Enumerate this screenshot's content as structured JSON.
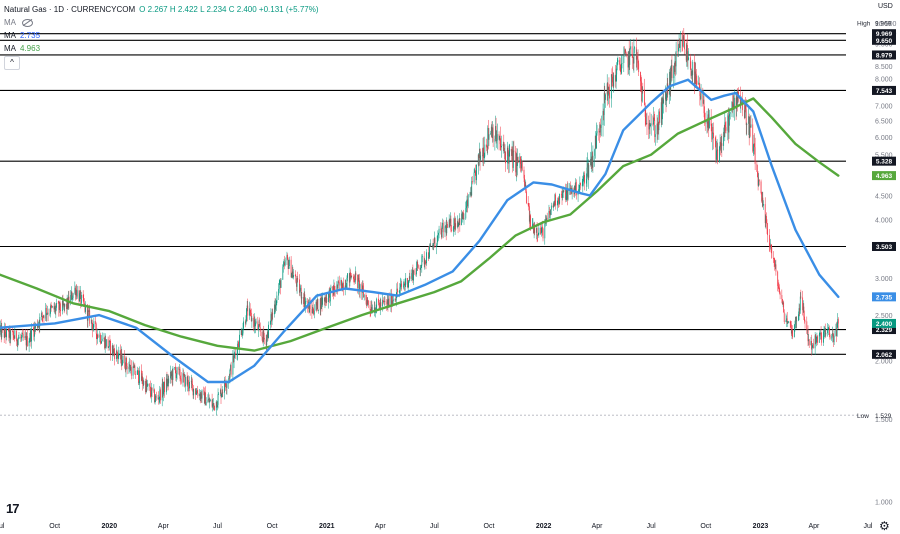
{
  "legend": {
    "symbol": "Natural Gas · 1D · CURRENCYCOM",
    "ohlc": "O 2.267  H 2.422  L 2.234  C 2.400  +0.131 (+5.77%)",
    "ma1_label": "MA",
    "ma2_label": "MA",
    "ma3_label": "MA",
    "ma2_value": "2.735",
    "ma3_value": "4.963",
    "collapse_glyph": "^"
  },
  "colors": {
    "up": "#089981",
    "down": "#f23645",
    "ma_fast": "#3a8ee6",
    "ma_slow": "#56a83c",
    "hline": "#000000"
  },
  "chart_data": {
    "type": "candlestick",
    "currency": "USD",
    "y_scale": "log",
    "ylim": [
      0.95,
      11.2
    ],
    "y_ticks": [
      1.0,
      1.5,
      2.0,
      2.5,
      3.0,
      3.5,
      4.0,
      4.5,
      5.0,
      5.5,
      6.0,
      6.5,
      7.0,
      7.5,
      8.0,
      8.5,
      9.0,
      9.5,
      10.0,
      10.5
    ],
    "y_tick_labels": [
      "1.000",
      "1.500",
      "2.000",
      "2.500",
      "3.000",
      "3.500",
      "4.000",
      "4.500",
      "5.000",
      "5.500",
      "6.000",
      "6.500",
      "7.000",
      "7.500",
      "8.000",
      "8.500",
      "9.000",
      "9.500",
      "10.000",
      "10.500"
    ],
    "x_range": [
      "2019-07-01",
      "2023-07-01"
    ],
    "x_ticks": [
      {
        "date": "2019-07-01",
        "label": "Jul"
      },
      {
        "date": "2019-10-01",
        "label": "Oct"
      },
      {
        "date": "2020-01-01",
        "label": "2020"
      },
      {
        "date": "2020-04-01",
        "label": "Apr"
      },
      {
        "date": "2020-07-01",
        "label": "Jul"
      },
      {
        "date": "2020-10-01",
        "label": "Oct"
      },
      {
        "date": "2021-01-01",
        "label": "2021"
      },
      {
        "date": "2021-04-01",
        "label": "Apr"
      },
      {
        "date": "2021-07-01",
        "label": "Jul"
      },
      {
        "date": "2021-10-01",
        "label": "Oct"
      },
      {
        "date": "2022-01-01",
        "label": "2022"
      },
      {
        "date": "2022-04-01",
        "label": "Apr"
      },
      {
        "date": "2022-07-01",
        "label": "Jul"
      },
      {
        "date": "2022-10-01",
        "label": "Oct"
      },
      {
        "date": "2023-01-01",
        "label": "2023"
      },
      {
        "date": "2023-04-01",
        "label": "Apr"
      },
      {
        "date": "2023-07-01",
        "label": "Jul"
      }
    ],
    "price_path": [
      [
        "2019-07-01",
        2.3
      ],
      [
        "2019-08-15",
        2.2
      ],
      [
        "2019-09-15",
        2.55
      ],
      [
        "2019-10-20",
        2.6
      ],
      [
        "2019-11-05",
        2.85
      ],
      [
        "2019-12-10",
        2.3
      ],
      [
        "2020-01-15",
        2.05
      ],
      [
        "2020-02-20",
        1.85
      ],
      [
        "2020-03-20",
        1.65
      ],
      [
        "2020-04-20",
        1.9
      ],
      [
        "2020-05-20",
        1.75
      ],
      [
        "2020-06-25",
        1.6
      ],
      [
        "2020-07-20",
        1.85
      ],
      [
        "2020-08-20",
        2.55
      ],
      [
        "2020-09-20",
        2.2
      ],
      [
        "2020-10-25",
        3.3
      ],
      [
        "2020-11-15",
        2.85
      ],
      [
        "2020-12-05",
        2.55
      ],
      [
        "2021-01-10",
        2.8
      ],
      [
        "2021-02-15",
        3.05
      ],
      [
        "2021-03-15",
        2.6
      ],
      [
        "2021-04-15",
        2.65
      ],
      [
        "2021-05-15",
        2.95
      ],
      [
        "2021-06-15",
        3.3
      ],
      [
        "2021-07-15",
        3.8
      ],
      [
        "2021-08-20",
        4.05
      ],
      [
        "2021-09-15",
        5.4
      ],
      [
        "2021-10-05",
        6.3
      ],
      [
        "2021-10-25",
        5.6
      ],
      [
        "2021-11-25",
        5.2
      ],
      [
        "2021-12-10",
        3.9
      ],
      [
        "2021-12-30",
        3.75
      ],
      [
        "2022-01-20",
        4.4
      ],
      [
        "2022-02-15",
        4.6
      ],
      [
        "2022-03-05",
        4.7
      ],
      [
        "2022-03-25",
        5.5
      ],
      [
        "2022-04-15",
        7.3
      ],
      [
        "2022-05-10",
        8.6
      ],
      [
        "2022-06-05",
        9.1
      ],
      [
        "2022-06-20",
        6.8
      ],
      [
        "2022-07-10",
        6.2
      ],
      [
        "2022-08-05",
        8.2
      ],
      [
        "2022-08-23",
        9.6
      ],
      [
        "2022-09-10",
        8.2
      ],
      [
        "2022-09-30",
        6.7
      ],
      [
        "2022-10-20",
        5.5
      ],
      [
        "2022-11-05",
        6.3
      ],
      [
        "2022-11-25",
        7.5
      ],
      [
        "2022-12-15",
        6.2
      ],
      [
        "2023-01-01",
        4.5
      ],
      [
        "2023-01-20",
        3.4
      ],
      [
        "2023-02-10",
        2.5
      ],
      [
        "2023-02-25",
        2.3
      ],
      [
        "2023-03-10",
        2.7
      ],
      [
        "2023-03-25",
        2.15
      ],
      [
        "2023-04-05",
        2.2
      ],
      [
        "2023-04-20",
        2.3
      ],
      [
        "2023-05-05",
        2.25
      ],
      [
        "2023-05-12",
        2.4
      ]
    ],
    "ma_fast": [
      [
        "2019-07-01",
        2.35
      ],
      [
        "2019-10-01",
        2.4
      ],
      [
        "2019-12-15",
        2.5
      ],
      [
        "2020-02-15",
        2.35
      ],
      [
        "2020-04-15",
        2.05
      ],
      [
        "2020-06-15",
        1.8
      ],
      [
        "2020-07-20",
        1.8
      ],
      [
        "2020-09-01",
        1.95
      ],
      [
        "2020-10-20",
        2.3
      ],
      [
        "2020-12-15",
        2.75
      ],
      [
        "2021-02-01",
        2.85
      ],
      [
        "2021-03-20",
        2.8
      ],
      [
        "2021-05-01",
        2.75
      ],
      [
        "2021-06-15",
        2.9
      ],
      [
        "2021-08-01",
        3.1
      ],
      [
        "2021-09-15",
        3.6
      ],
      [
        "2021-11-01",
        4.4
      ],
      [
        "2021-12-15",
        4.8
      ],
      [
        "2022-01-15",
        4.75
      ],
      [
        "2022-03-05",
        4.55
      ],
      [
        "2022-03-20",
        4.5
      ],
      [
        "2022-04-15",
        5.0
      ],
      [
        "2022-05-15",
        6.2
      ],
      [
        "2022-07-01",
        7.1
      ],
      [
        "2022-08-01",
        7.7
      ],
      [
        "2022-09-01",
        7.95
      ],
      [
        "2022-10-10",
        7.2
      ],
      [
        "2022-11-01",
        7.35
      ],
      [
        "2022-11-20",
        7.45
      ],
      [
        "2022-12-20",
        6.8
      ],
      [
        "2023-01-20",
        5.2
      ],
      [
        "2023-03-01",
        3.8
      ],
      [
        "2023-04-10",
        3.05
      ],
      [
        "2023-05-12",
        2.735
      ]
    ],
    "ma_slow": [
      [
        "2019-07-01",
        3.05
      ],
      [
        "2019-09-01",
        2.85
      ],
      [
        "2019-11-01",
        2.65
      ],
      [
        "2020-01-01",
        2.55
      ],
      [
        "2020-03-01",
        2.38
      ],
      [
        "2020-05-01",
        2.25
      ],
      [
        "2020-07-01",
        2.15
      ],
      [
        "2020-09-01",
        2.1
      ],
      [
        "2020-11-01",
        2.2
      ],
      [
        "2021-01-01",
        2.35
      ],
      [
        "2021-03-01",
        2.5
      ],
      [
        "2021-05-01",
        2.65
      ],
      [
        "2021-07-01",
        2.8
      ],
      [
        "2021-08-15",
        2.95
      ],
      [
        "2021-10-01",
        3.3
      ],
      [
        "2021-11-15",
        3.7
      ],
      [
        "2022-01-01",
        3.95
      ],
      [
        "2022-02-15",
        4.1
      ],
      [
        "2022-04-01",
        4.6
      ],
      [
        "2022-05-15",
        5.2
      ],
      [
        "2022-07-01",
        5.5
      ],
      [
        "2022-08-15",
        6.1
      ],
      [
        "2022-10-01",
        6.5
      ],
      [
        "2022-11-15",
        6.9
      ],
      [
        "2022-12-20",
        7.25
      ],
      [
        "2023-01-20",
        6.6
      ],
      [
        "2023-03-01",
        5.8
      ],
      [
        "2023-04-10",
        5.3
      ],
      [
        "2023-05-12",
        4.963
      ]
    ],
    "horizontal_levels": [
      {
        "price": 9.969,
        "label": "9.969"
      },
      {
        "price": 9.65,
        "label": "9.650"
      },
      {
        "price": 8.979,
        "label": "8.979"
      },
      {
        "price": 7.543,
        "label": "7.543"
      },
      {
        "price": 5.328,
        "label": "5.328"
      },
      {
        "price": 3.503,
        "label": "3.503"
      },
      {
        "price": 2.329,
        "label": "2.329"
      },
      {
        "price": 2.062,
        "label": "2.062"
      }
    ],
    "price_labels": [
      {
        "price": 9.969,
        "title": "High",
        "label": "9.969"
      },
      {
        "price": 1.529,
        "title": "Low",
        "label": "1.529"
      },
      {
        "price": 2.735,
        "label": "2.735",
        "color": "#3a8ee6"
      },
      {
        "price": 4.963,
        "label": "4.963",
        "color": "#56a83c"
      },
      {
        "price": 2.4,
        "label": "2.400",
        "color": "#089981"
      }
    ],
    "low_level": 1.529,
    "grid": false
  }
}
